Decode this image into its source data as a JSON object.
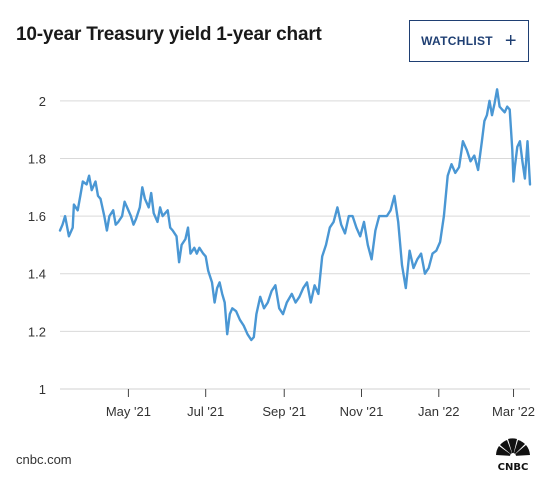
{
  "header": {
    "title": "10-year Treasury yield 1-year chart",
    "watchlist_label": "WATCHLIST",
    "watchlist_icon": "plus-icon"
  },
  "footer": {
    "source": "cnbc.com",
    "logo_text": "CNBC"
  },
  "colors": {
    "line": "#4a97d4",
    "grid": "#d9d9d9",
    "button": "#1f3f73"
  },
  "chart_data": {
    "type": "line",
    "title": "",
    "xlabel": "",
    "ylabel": "",
    "ylim": [
      1,
      2.1
    ],
    "grid": true,
    "y_ticks": [
      1,
      1.2,
      1.4,
      1.6,
      1.8,
      2
    ],
    "y_tick_labels": [
      "1",
      "1.2",
      "1.4",
      "1.6",
      "1.8",
      "2"
    ],
    "x_range": [
      "2021-03-08",
      "2022-03-14"
    ],
    "x_ticks": [
      {
        "date": "2021-05-01",
        "label": "May '21"
      },
      {
        "date": "2021-07-01",
        "label": "Jul '21"
      },
      {
        "date": "2021-09-01",
        "label": "Sep '21"
      },
      {
        "date": "2021-11-01",
        "label": "Nov '21"
      },
      {
        "date": "2022-01-01",
        "label": "Jan '22"
      },
      {
        "date": "2022-03-01",
        "label": "Mar '22"
      }
    ],
    "series": [
      {
        "x": [
          "2021-03-08",
          "2021-03-10",
          "2021-03-12",
          "2021-03-15",
          "2021-03-18",
          "2021-03-19",
          "2021-03-22",
          "2021-03-24",
          "2021-03-26",
          "2021-03-29",
          "2021-03-31",
          "2021-04-02",
          "2021-04-05",
          "2021-04-07",
          "2021-04-09",
          "2021-04-12",
          "2021-04-14",
          "2021-04-16",
          "2021-04-19",
          "2021-04-21",
          "2021-04-23",
          "2021-04-26",
          "2021-04-28",
          "2021-04-30",
          "2021-05-03",
          "2021-05-05",
          "2021-05-07",
          "2021-05-10",
          "2021-05-12",
          "2021-05-14",
          "2021-05-17",
          "2021-05-19",
          "2021-05-21",
          "2021-05-24",
          "2021-05-26",
          "2021-05-28",
          "2021-06-01",
          "2021-06-03",
          "2021-06-05",
          "2021-06-08",
          "2021-06-10",
          "2021-06-12",
          "2021-06-15",
          "2021-06-17",
          "2021-06-19",
          "2021-06-22",
          "2021-06-24",
          "2021-06-26",
          "2021-06-29",
          "2021-07-01",
          "2021-07-03",
          "2021-07-06",
          "2021-07-08",
          "2021-07-10",
          "2021-07-12",
          "2021-07-14",
          "2021-07-16",
          "2021-07-18",
          "2021-07-20",
          "2021-07-22",
          "2021-07-25",
          "2021-07-28",
          "2021-07-31",
          "2021-08-03",
          "2021-08-06",
          "2021-08-08",
          "2021-08-10",
          "2021-08-13",
          "2021-08-16",
          "2021-08-19",
          "2021-08-22",
          "2021-08-25",
          "2021-08-28",
          "2021-08-31",
          "2021-09-03",
          "2021-09-07",
          "2021-09-10",
          "2021-09-13",
          "2021-09-16",
          "2021-09-19",
          "2021-09-22",
          "2021-09-25",
          "2021-09-28",
          "2021-10-01",
          "2021-10-04",
          "2021-10-07",
          "2021-10-10",
          "2021-10-13",
          "2021-10-16",
          "2021-10-19",
          "2021-10-22",
          "2021-10-25",
          "2021-10-28",
          "2021-10-31",
          "2021-11-03",
          "2021-11-06",
          "2021-11-09",
          "2021-11-12",
          "2021-11-15",
          "2021-11-18",
          "2021-11-21",
          "2021-11-24",
          "2021-11-27",
          "2021-11-30",
          "2021-12-03",
          "2021-12-06",
          "2021-12-09",
          "2021-12-12",
          "2021-12-15",
          "2021-12-18",
          "2021-12-21",
          "2021-12-24",
          "2021-12-27",
          "2021-12-30",
          "2022-01-02",
          "2022-01-05",
          "2022-01-08",
          "2022-01-11",
          "2022-01-14",
          "2022-01-17",
          "2022-01-20",
          "2022-01-23",
          "2022-01-26",
          "2022-01-29",
          "2022-02-01",
          "2022-02-04",
          "2022-02-06",
          "2022-02-08",
          "2022-02-10",
          "2022-02-12",
          "2022-02-14",
          "2022-02-16",
          "2022-02-18",
          "2022-02-20",
          "2022-02-22",
          "2022-02-24",
          "2022-02-26",
          "2022-02-28",
          "2022-03-01",
          "2022-03-02",
          "2022-03-04",
          "2022-03-06",
          "2022-03-08",
          "2022-03-10",
          "2022-03-12",
          "2022-03-14"
        ],
        "values": [
          1.55,
          1.57,
          1.6,
          1.53,
          1.56,
          1.64,
          1.62,
          1.67,
          1.72,
          1.71,
          1.74,
          1.69,
          1.72,
          1.67,
          1.66,
          1.6,
          1.55,
          1.6,
          1.62,
          1.57,
          1.58,
          1.6,
          1.65,
          1.63,
          1.6,
          1.57,
          1.59,
          1.63,
          1.7,
          1.66,
          1.63,
          1.68,
          1.61,
          1.58,
          1.63,
          1.6,
          1.62,
          1.56,
          1.55,
          1.53,
          1.44,
          1.5,
          1.52,
          1.56,
          1.47,
          1.49,
          1.47,
          1.49,
          1.47,
          1.46,
          1.41,
          1.37,
          1.3,
          1.35,
          1.37,
          1.33,
          1.3,
          1.19,
          1.26,
          1.28,
          1.27,
          1.24,
          1.22,
          1.19,
          1.17,
          1.18,
          1.26,
          1.32,
          1.28,
          1.3,
          1.34,
          1.36,
          1.28,
          1.26,
          1.3,
          1.33,
          1.3,
          1.32,
          1.35,
          1.37,
          1.3,
          1.36,
          1.33,
          1.46,
          1.5,
          1.56,
          1.58,
          1.63,
          1.57,
          1.54,
          1.6,
          1.6,
          1.56,
          1.53,
          1.58,
          1.5,
          1.45,
          1.55,
          1.6,
          1.6,
          1.6,
          1.62,
          1.67,
          1.58,
          1.43,
          1.35,
          1.48,
          1.42,
          1.45,
          1.47,
          1.4,
          1.42,
          1.47,
          1.48,
          1.51,
          1.6,
          1.74,
          1.78,
          1.75,
          1.77,
          1.86,
          1.83,
          1.79,
          1.81,
          1.76,
          1.86,
          1.93,
          1.95,
          2.0,
          1.95,
          1.99,
          2.04,
          1.98,
          1.97,
          1.96,
          1.98,
          1.97,
          1.83,
          1.72,
          1.77,
          1.84,
          1.86,
          1.79,
          1.73,
          1.86,
          1.71
        ]
      }
    ]
  }
}
